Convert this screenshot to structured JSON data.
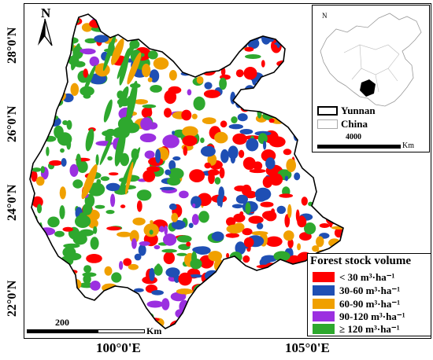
{
  "north": {
    "label": "N"
  },
  "latitude_labels": [
    "28°0'N",
    "26°0'N",
    "24°0'N",
    "22°0'N"
  ],
  "longitude_labels": [
    "100°0'E",
    "105°0'E"
  ],
  "legend": {
    "title": "Forest stock volume",
    "items": [
      {
        "label": "< 30 m³·ha⁻¹",
        "color": "#ff0000"
      },
      {
        "label": "30-60 m³·ha⁻¹",
        "color": "#1f4fb4"
      },
      {
        "label": "60-90 m³·ha⁻¹",
        "color": "#f0a000"
      },
      {
        "label": "90-120 m³·ha⁻¹",
        "color": "#9b30e0"
      },
      {
        "label": "≥ 120 m³·ha⁻¹",
        "color": "#2ea82e"
      }
    ]
  },
  "scale": {
    "value": "200",
    "unit": "Km"
  },
  "inset": {
    "legend": [
      {
        "label": "Yunnan"
      },
      {
        "label": "China"
      }
    ],
    "scale": {
      "value": "4000",
      "unit": "Km"
    }
  }
}
